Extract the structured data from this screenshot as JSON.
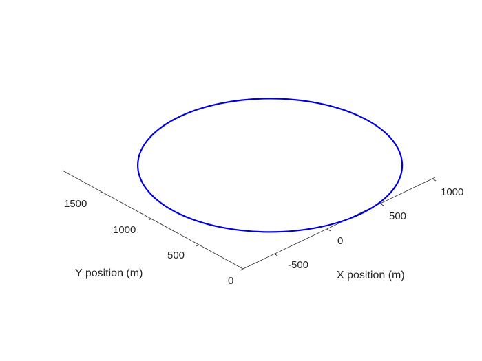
{
  "chart_data": {
    "type": "line",
    "title": "",
    "xlabel": "X position (m)",
    "ylabel": "Y position (m)",
    "zlabel": "",
    "view": "3d",
    "grid": false,
    "x_ticks": [
      "-500",
      "0",
      "500",
      "1000"
    ],
    "y_ticks": [
      "0",
      "500",
      "1000",
      "1500"
    ],
    "series": [
      {
        "color": "#0000dd",
        "shape": "circle",
        "center": {
          "x": 300,
          "y": 1000
        },
        "radius": 1000,
        "z": 0
      }
    ]
  }
}
